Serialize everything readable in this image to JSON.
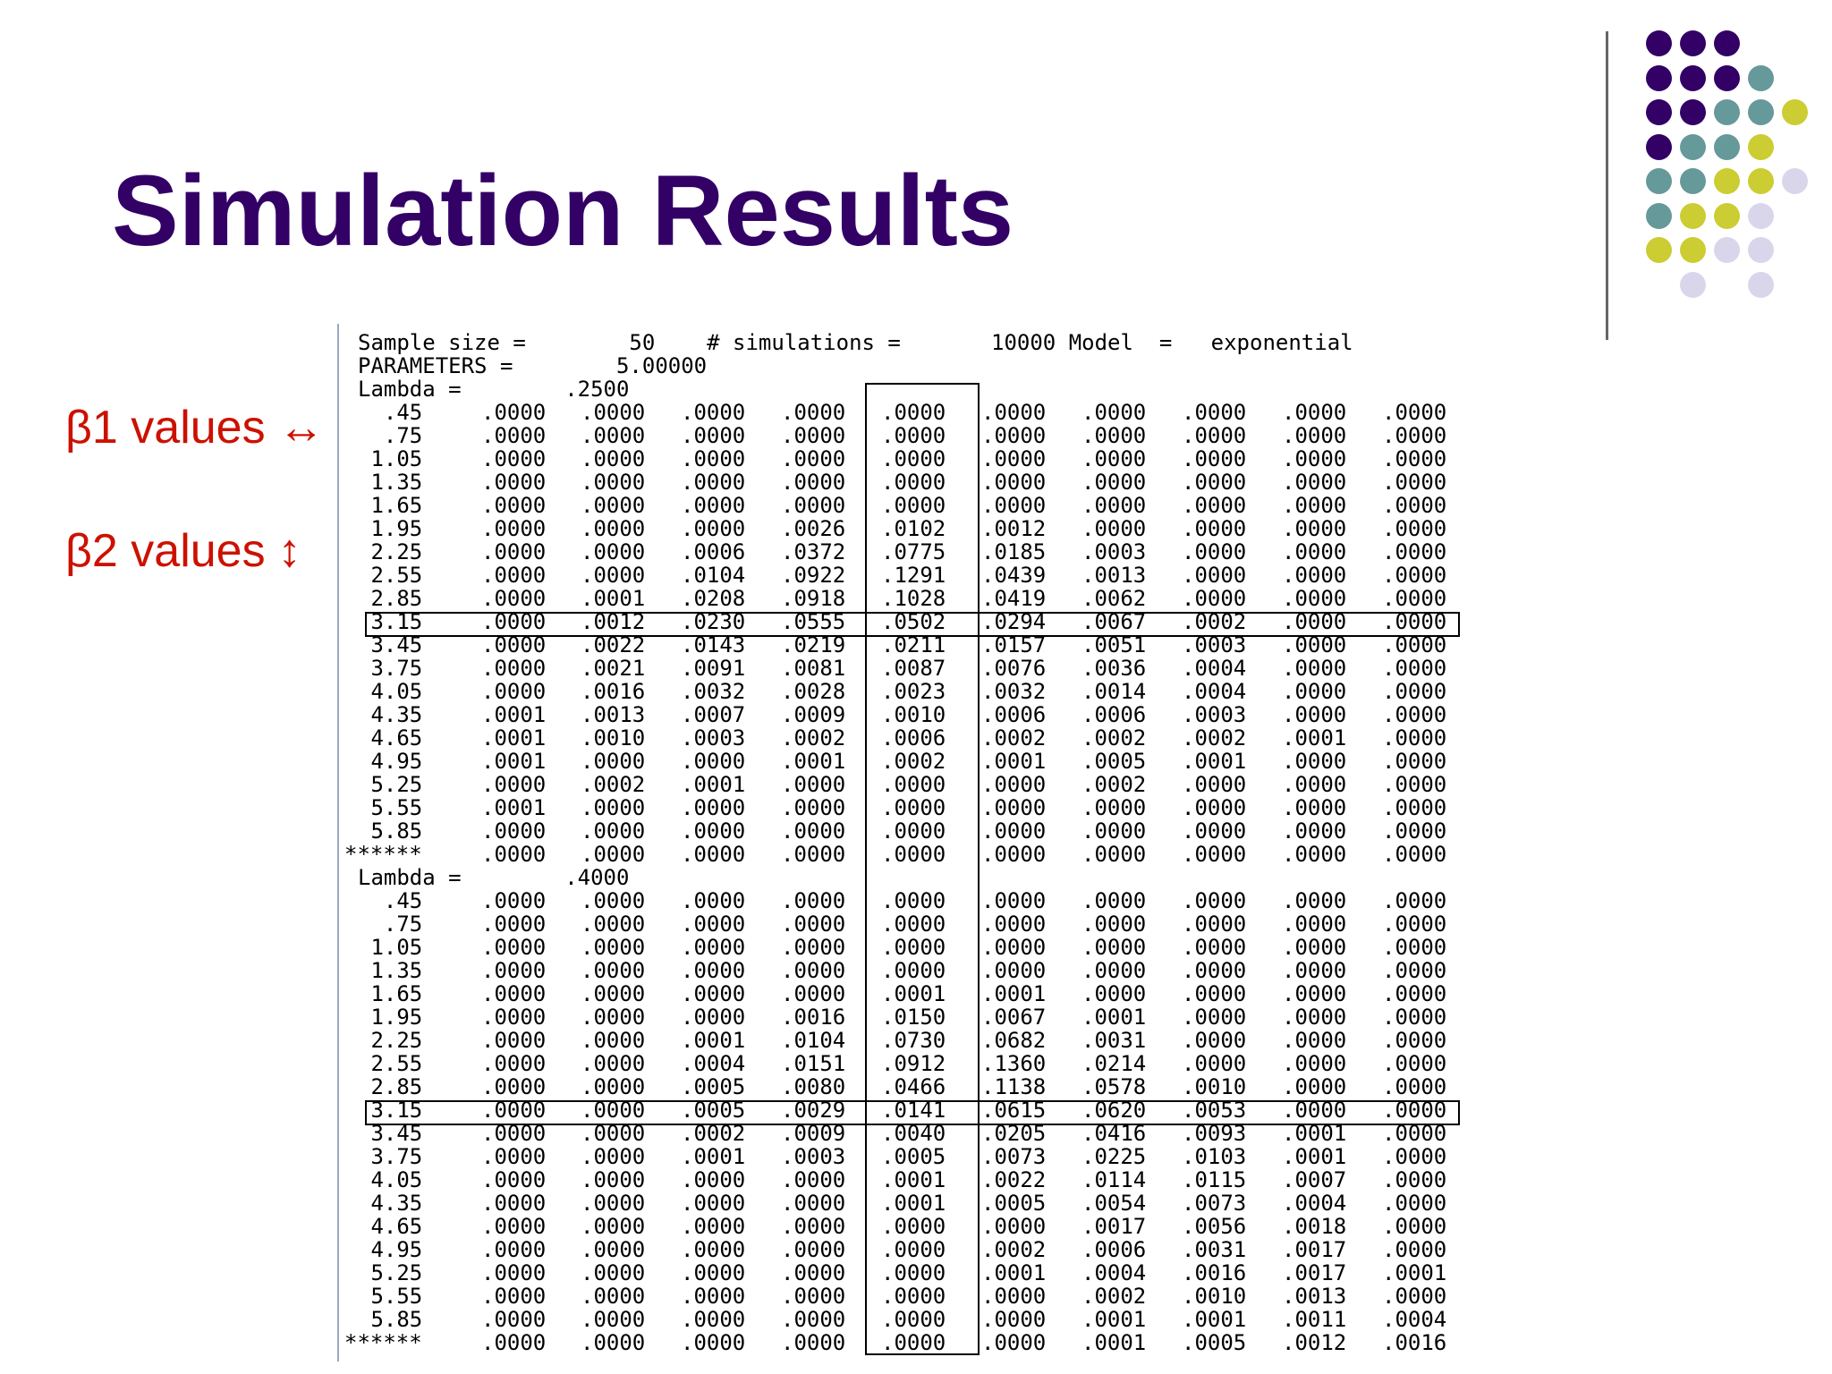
{
  "title": "Simulation Results",
  "labels": {
    "beta1": {
      "text": "β1 values",
      "arrow": "↔"
    },
    "beta2": {
      "text": "β2 values",
      "arrow": "↕"
    }
  },
  "colors": {
    "title": "#330066",
    "label": "#cc1100",
    "dot_purple": "#330066",
    "dot_teal": "#669999",
    "dot_olive": "#cccc33",
    "dot_lavender": "#d9d6ec"
  },
  "output": {
    "header": [
      "Sample size =        50    # simulations =       10000 Model  =   exponential",
      "PARAMETERS =        5.00000"
    ],
    "blocks": [
      {
        "lambda_line": "Lambda =        .2500",
        "rows": [
          [
            "  .45",
            ".0000",
            ".0000",
            ".0000",
            ".0000",
            ".0000",
            ".0000",
            ".0000",
            ".0000",
            ".0000",
            ".0000"
          ],
          [
            "  .75",
            ".0000",
            ".0000",
            ".0000",
            ".0000",
            ".0000",
            ".0000",
            ".0000",
            ".0000",
            ".0000",
            ".0000"
          ],
          [
            " 1.05",
            ".0000",
            ".0000",
            ".0000",
            ".0000",
            ".0000",
            ".0000",
            ".0000",
            ".0000",
            ".0000",
            ".0000"
          ],
          [
            " 1.35",
            ".0000",
            ".0000",
            ".0000",
            ".0000",
            ".0000",
            ".0000",
            ".0000",
            ".0000",
            ".0000",
            ".0000"
          ],
          [
            " 1.65",
            ".0000",
            ".0000",
            ".0000",
            ".0000",
            ".0000",
            ".0000",
            ".0000",
            ".0000",
            ".0000",
            ".0000"
          ],
          [
            " 1.95",
            ".0000",
            ".0000",
            ".0000",
            ".0026",
            ".0102",
            ".0012",
            ".0000",
            ".0000",
            ".0000",
            ".0000"
          ],
          [
            " 2.25",
            ".0000",
            ".0000",
            ".0006",
            ".0372",
            ".0775",
            ".0185",
            ".0003",
            ".0000",
            ".0000",
            ".0000"
          ],
          [
            " 2.55",
            ".0000",
            ".0000",
            ".0104",
            ".0922",
            ".1291",
            ".0439",
            ".0013",
            ".0000",
            ".0000",
            ".0000"
          ],
          [
            " 2.85",
            ".0000",
            ".0001",
            ".0208",
            ".0918",
            ".1028",
            ".0419",
            ".0062",
            ".0000",
            ".0000",
            ".0000"
          ],
          [
            " 3.15",
            ".0000",
            ".0012",
            ".0230",
            ".0555",
            ".0502",
            ".0294",
            ".0067",
            ".0002",
            ".0000",
            ".0000"
          ],
          [
            " 3.45",
            ".0000",
            ".0022",
            ".0143",
            ".0219",
            ".0211",
            ".0157",
            ".0051",
            ".0003",
            ".0000",
            ".0000"
          ],
          [
            " 3.75",
            ".0000",
            ".0021",
            ".0091",
            ".0081",
            ".0087",
            ".0076",
            ".0036",
            ".0004",
            ".0000",
            ".0000"
          ],
          [
            " 4.05",
            ".0000",
            ".0016",
            ".0032",
            ".0028",
            ".0023",
            ".0032",
            ".0014",
            ".0004",
            ".0000",
            ".0000"
          ],
          [
            " 4.35",
            ".0001",
            ".0013",
            ".0007",
            ".0009",
            ".0010",
            ".0006",
            ".0006",
            ".0003",
            ".0000",
            ".0000"
          ],
          [
            " 4.65",
            ".0001",
            ".0010",
            ".0003",
            ".0002",
            ".0006",
            ".0002",
            ".0002",
            ".0002",
            ".0001",
            ".0000"
          ],
          [
            " 4.95",
            ".0001",
            ".0000",
            ".0000",
            ".0001",
            ".0002",
            ".0001",
            ".0005",
            ".0001",
            ".0000",
            ".0000"
          ],
          [
            " 5.25",
            ".0000",
            ".0002",
            ".0001",
            ".0000",
            ".0000",
            ".0000",
            ".0002",
            ".0000",
            ".0000",
            ".0000"
          ],
          [
            " 5.55",
            ".0001",
            ".0000",
            ".0000",
            ".0000",
            ".0000",
            ".0000",
            ".0000",
            ".0000",
            ".0000",
            ".0000"
          ],
          [
            " 5.85",
            ".0000",
            ".0000",
            ".0000",
            ".0000",
            ".0000",
            ".0000",
            ".0000",
            ".0000",
            ".0000",
            ".0000"
          ],
          [
            "******",
            ".0000",
            ".0000",
            ".0000",
            ".0000",
            ".0000",
            ".0000",
            ".0000",
            ".0000",
            ".0000",
            ".0000"
          ]
        ]
      },
      {
        "lambda_line": "Lambda =        .4000",
        "rows": [
          [
            "  .45",
            ".0000",
            ".0000",
            ".0000",
            ".0000",
            ".0000",
            ".0000",
            ".0000",
            ".0000",
            ".0000",
            ".0000"
          ],
          [
            "  .75",
            ".0000",
            ".0000",
            ".0000",
            ".0000",
            ".0000",
            ".0000",
            ".0000",
            ".0000",
            ".0000",
            ".0000"
          ],
          [
            " 1.05",
            ".0000",
            ".0000",
            ".0000",
            ".0000",
            ".0000",
            ".0000",
            ".0000",
            ".0000",
            ".0000",
            ".0000"
          ],
          [
            " 1.35",
            ".0000",
            ".0000",
            ".0000",
            ".0000",
            ".0000",
            ".0000",
            ".0000",
            ".0000",
            ".0000",
            ".0000"
          ],
          [
            " 1.65",
            ".0000",
            ".0000",
            ".0000",
            ".0000",
            ".0001",
            ".0001",
            ".0000",
            ".0000",
            ".0000",
            ".0000"
          ],
          [
            " 1.95",
            ".0000",
            ".0000",
            ".0000",
            ".0016",
            ".0150",
            ".0067",
            ".0001",
            ".0000",
            ".0000",
            ".0000"
          ],
          [
            " 2.25",
            ".0000",
            ".0000",
            ".0001",
            ".0104",
            ".0730",
            ".0682",
            ".0031",
            ".0000",
            ".0000",
            ".0000"
          ],
          [
            " 2.55",
            ".0000",
            ".0000",
            ".0004",
            ".0151",
            ".0912",
            ".1360",
            ".0214",
            ".0000",
            ".0000",
            ".0000"
          ],
          [
            " 2.85",
            ".0000",
            ".0000",
            ".0005",
            ".0080",
            ".0466",
            ".1138",
            ".0578",
            ".0010",
            ".0000",
            ".0000"
          ],
          [
            " 3.15",
            ".0000",
            ".0000",
            ".0005",
            ".0029",
            ".0141",
            ".0615",
            ".0620",
            ".0053",
            ".0000",
            ".0000"
          ],
          [
            " 3.45",
            ".0000",
            ".0000",
            ".0002",
            ".0009",
            ".0040",
            ".0205",
            ".0416",
            ".0093",
            ".0001",
            ".0000"
          ],
          [
            " 3.75",
            ".0000",
            ".0000",
            ".0001",
            ".0003",
            ".0005",
            ".0073",
            ".0225",
            ".0103",
            ".0001",
            ".0000"
          ],
          [
            " 4.05",
            ".0000",
            ".0000",
            ".0000",
            ".0000",
            ".0001",
            ".0022",
            ".0114",
            ".0115",
            ".0007",
            ".0000"
          ],
          [
            " 4.35",
            ".0000",
            ".0000",
            ".0000",
            ".0000",
            ".0001",
            ".0005",
            ".0054",
            ".0073",
            ".0004",
            ".0000"
          ],
          [
            " 4.65",
            ".0000",
            ".0000",
            ".0000",
            ".0000",
            ".0000",
            ".0000",
            ".0017",
            ".0056",
            ".0018",
            ".0000"
          ],
          [
            " 4.95",
            ".0000",
            ".0000",
            ".0000",
            ".0000",
            ".0000",
            ".0002",
            ".0006",
            ".0031",
            ".0017",
            ".0000"
          ],
          [
            " 5.25",
            ".0000",
            ".0000",
            ".0000",
            ".0000",
            ".0000",
            ".0001",
            ".0004",
            ".0016",
            ".0017",
            ".0001"
          ],
          [
            " 5.55",
            ".0000",
            ".0000",
            ".0000",
            ".0000",
            ".0000",
            ".0000",
            ".0002",
            ".0010",
            ".0013",
            ".0000"
          ],
          [
            " 5.85",
            ".0000",
            ".0000",
            ".0000",
            ".0000",
            ".0000",
            ".0000",
            ".0001",
            ".0001",
            ".0011",
            ".0004"
          ],
          [
            "******",
            ".0000",
            ".0000",
            ".0000",
            ".0000",
            ".0000",
            ".0000",
            ".0001",
            ".0005",
            ".0012",
            ".0016"
          ]
        ]
      }
    ]
  }
}
